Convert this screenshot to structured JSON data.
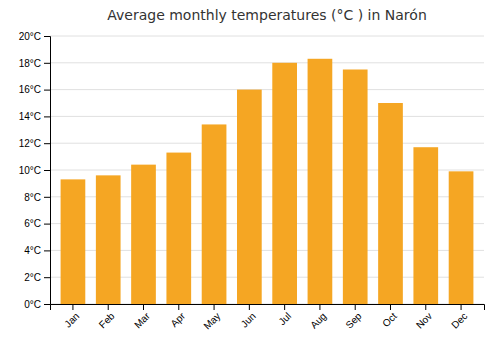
{
  "chart_data": {
    "type": "bar",
    "title": "Average monthly temperatures (°C ) in Narón",
    "categories": [
      "Jan",
      "Feb",
      "Mar",
      "Apr",
      "May",
      "Jun",
      "Jul",
      "Aug",
      "Sep",
      "Oct",
      "Nov",
      "Dec"
    ],
    "values": [
      9.3,
      9.6,
      10.4,
      11.3,
      13.4,
      16.0,
      18.0,
      18.3,
      17.5,
      15.0,
      11.7,
      9.9
    ],
    "color": "#F5A623",
    "ylim": [
      0,
      20
    ],
    "yticks": [
      {
        "value": 0,
        "label": "0°C"
      },
      {
        "value": 2,
        "label": "2°C"
      },
      {
        "value": 4,
        "label": "4°C"
      },
      {
        "value": 6,
        "label": "6°C"
      },
      {
        "value": 8,
        "label": "8°C"
      },
      {
        "value": 10,
        "label": "10°C"
      },
      {
        "value": 12,
        "label": "12°C"
      },
      {
        "value": 14,
        "label": "14°C"
      },
      {
        "value": 16,
        "label": "16°C"
      },
      {
        "value": 18,
        "label": "18°C"
      },
      {
        "value": 20,
        "label": "20°C"
      }
    ],
    "grid": true
  }
}
